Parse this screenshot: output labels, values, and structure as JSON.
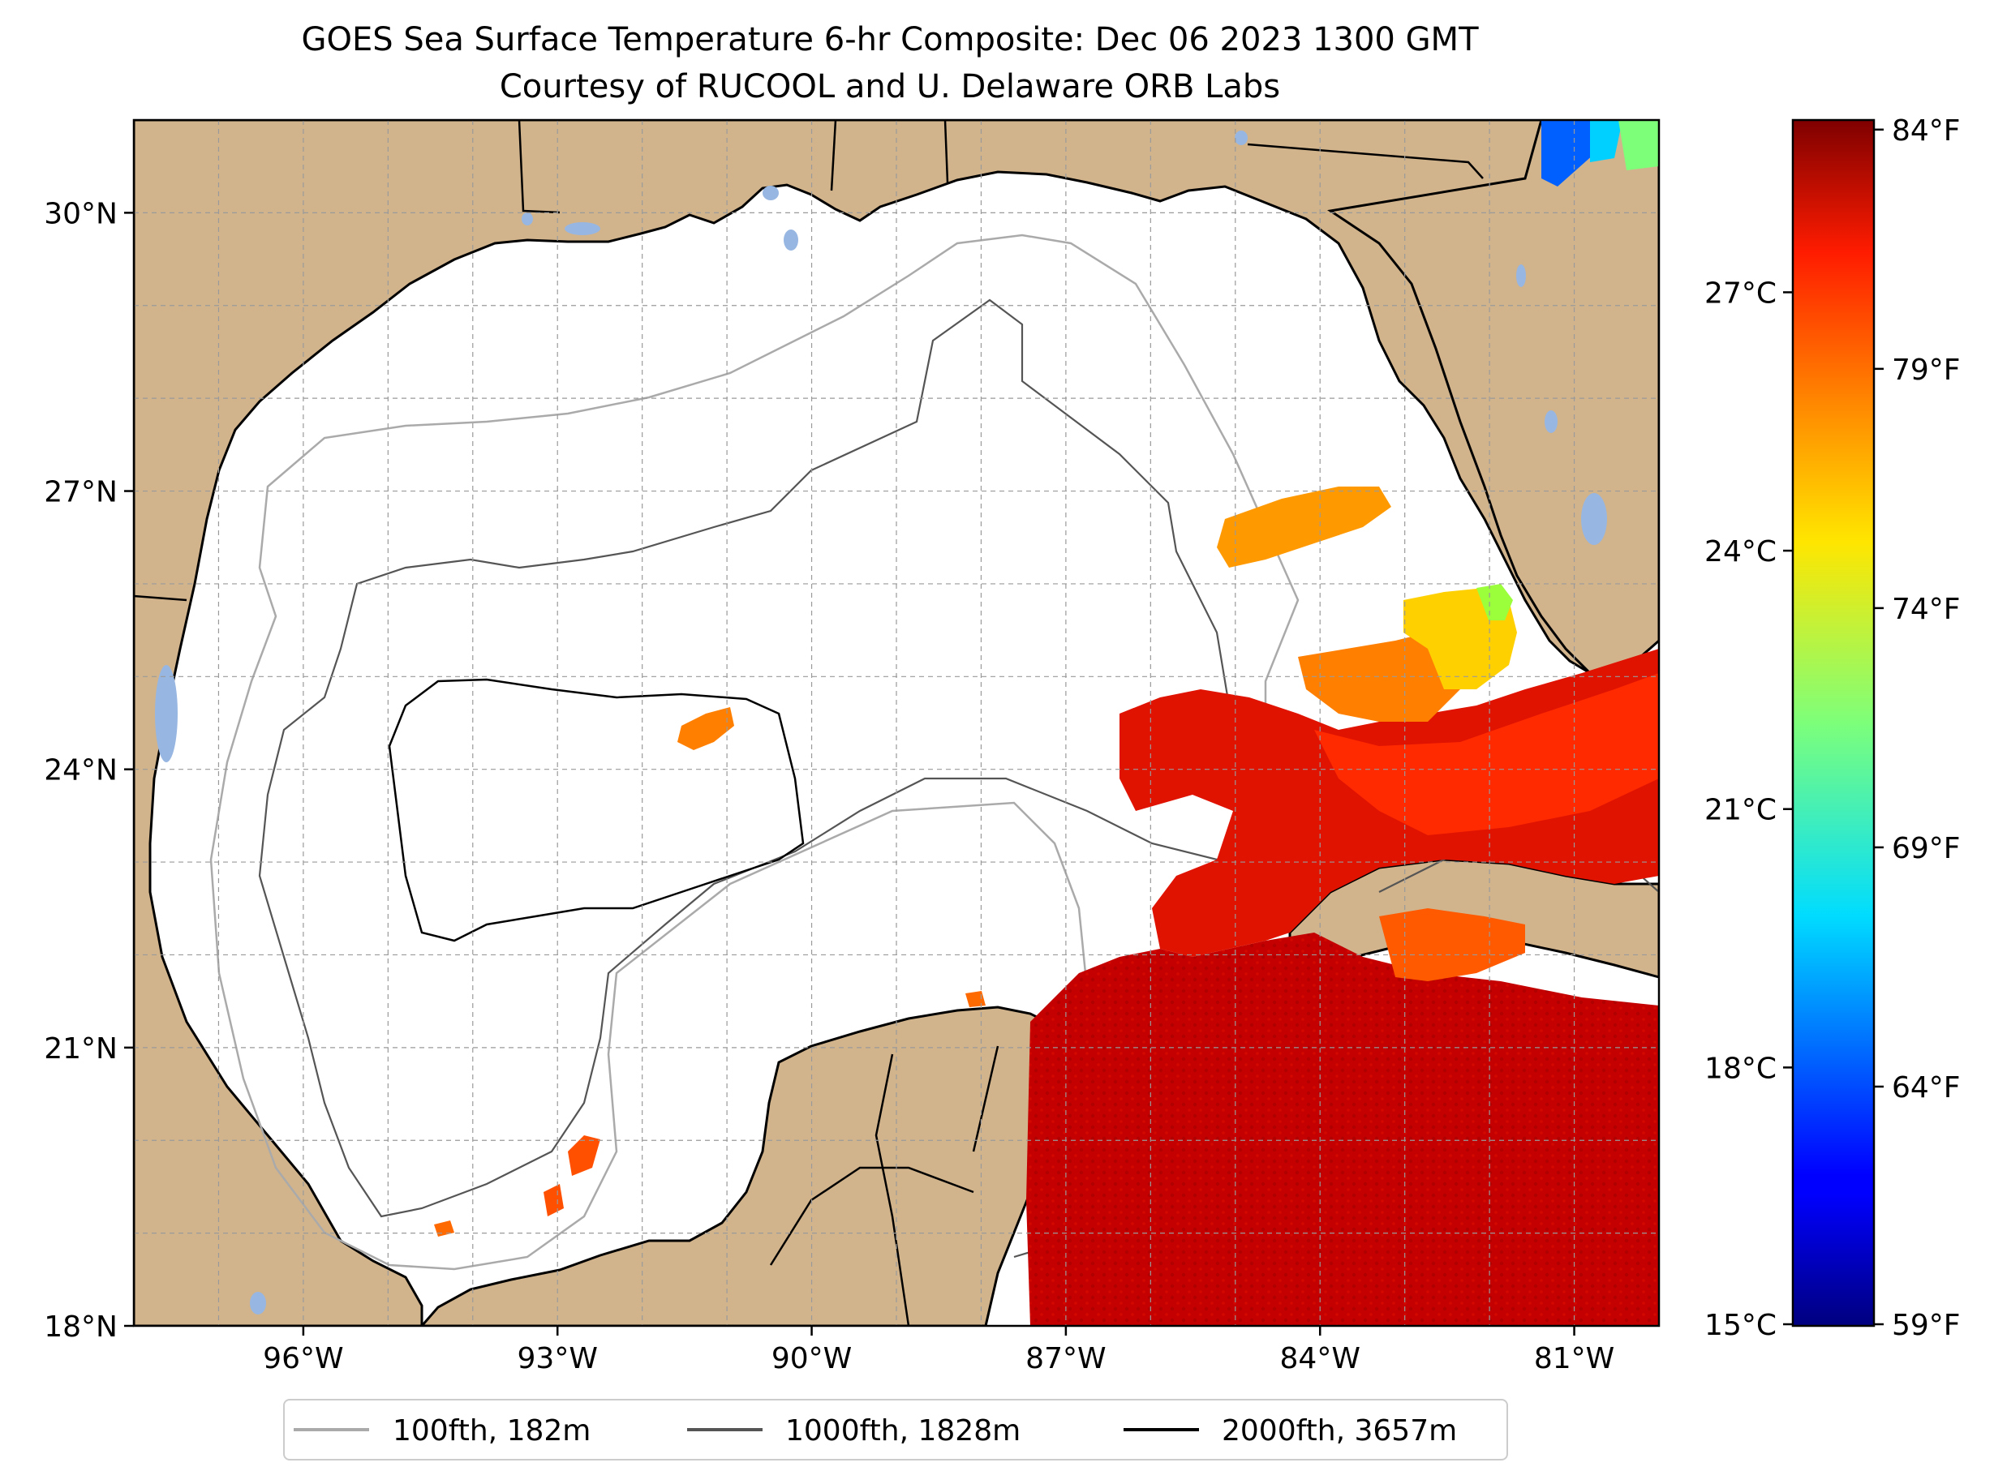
{
  "title": {
    "line1": "GOES Sea Surface Temperature 6-hr Composite: Dec 06 2023 1300 GMT",
    "line2": "Courtesy of RUCOOL and U. Delaware ORB Labs"
  },
  "map": {
    "lon_range": [
      -98.0,
      -80.0
    ],
    "lat_range": [
      18.0,
      31.0
    ],
    "x_ticks": [
      {
        "lon": -96,
        "label": "96°W"
      },
      {
        "lon": -93,
        "label": "93°W"
      },
      {
        "lon": -90,
        "label": "90°W"
      },
      {
        "lon": -87,
        "label": "87°W"
      },
      {
        "lon": -84,
        "label": "84°W"
      },
      {
        "lon": -81,
        "label": "81°W"
      }
    ],
    "y_ticks": [
      {
        "lat": 30,
        "label": "30°N"
      },
      {
        "lat": 27,
        "label": "27°N"
      },
      {
        "lat": 24,
        "label": "24°N"
      },
      {
        "lat": 21,
        "label": "21°N"
      },
      {
        "lat": 18,
        "label": "18°N"
      }
    ],
    "grid": "dashed gray, every 1°",
    "colors": {
      "land": "#d2b48c",
      "lakes": "#97b6e1",
      "ocean_no_data": "#ffffff",
      "coastline": "#000000"
    }
  },
  "legend": {
    "placement": "bottom-center",
    "items": [
      {
        "label": "100fth, 182m",
        "color": "#aaaaaa"
      },
      {
        "label": "1000fth, 1828m",
        "color": "#555555"
      },
      {
        "label": "2000fth, 3657m",
        "color": "#000000"
      }
    ]
  },
  "colorbar": {
    "colormap": "jet",
    "celsius": {
      "min": 15,
      "max": 29,
      "ticks": [
        {
          "value": 27,
          "label": "27°C"
        },
        {
          "value": 24,
          "label": "24°C"
        },
        {
          "value": 21,
          "label": "21°C"
        },
        {
          "value": 18,
          "label": "18°C"
        },
        {
          "value": 15,
          "label": "15°C"
        }
      ]
    },
    "fahrenheit": {
      "ticks": [
        {
          "value": 84,
          "label": "84°F"
        },
        {
          "value": 79,
          "label": "79°F"
        },
        {
          "value": 74,
          "label": "74°F"
        },
        {
          "value": 69,
          "label": "69°F"
        },
        {
          "value": 64,
          "label": "64°F"
        },
        {
          "value": 59,
          "label": "59°F"
        }
      ]
    }
  }
}
